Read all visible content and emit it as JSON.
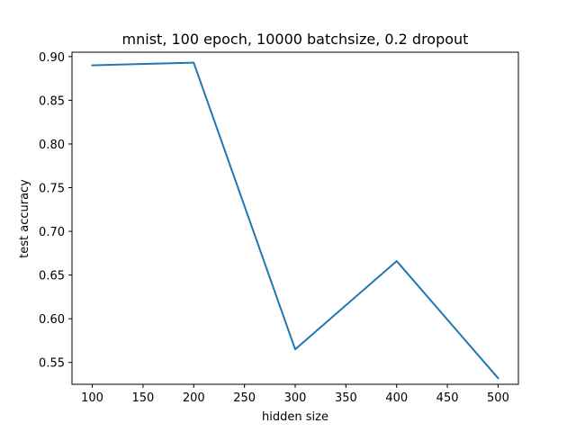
{
  "chart_data": {
    "type": "line",
    "title": "mnist, 100 epoch, 10000 batchsize, 0.2 dropout",
    "xlabel": "hidden size",
    "ylabel": "test accuracy",
    "xlim": [
      80,
      520
    ],
    "ylim": [
      0.525,
      0.905
    ],
    "xticks": [
      100,
      150,
      200,
      250,
      300,
      350,
      400,
      450,
      500
    ],
    "yticks": [
      0.55,
      0.6,
      0.65,
      0.7,
      0.75,
      0.8,
      0.85,
      0.9
    ],
    "grid": false,
    "series": [
      {
        "x": [
          100,
          200,
          300,
          400,
          500
        ],
        "values": [
          0.89,
          0.893,
          0.565,
          0.666,
          0.532
        ],
        "color": "#1f77b4"
      }
    ]
  }
}
